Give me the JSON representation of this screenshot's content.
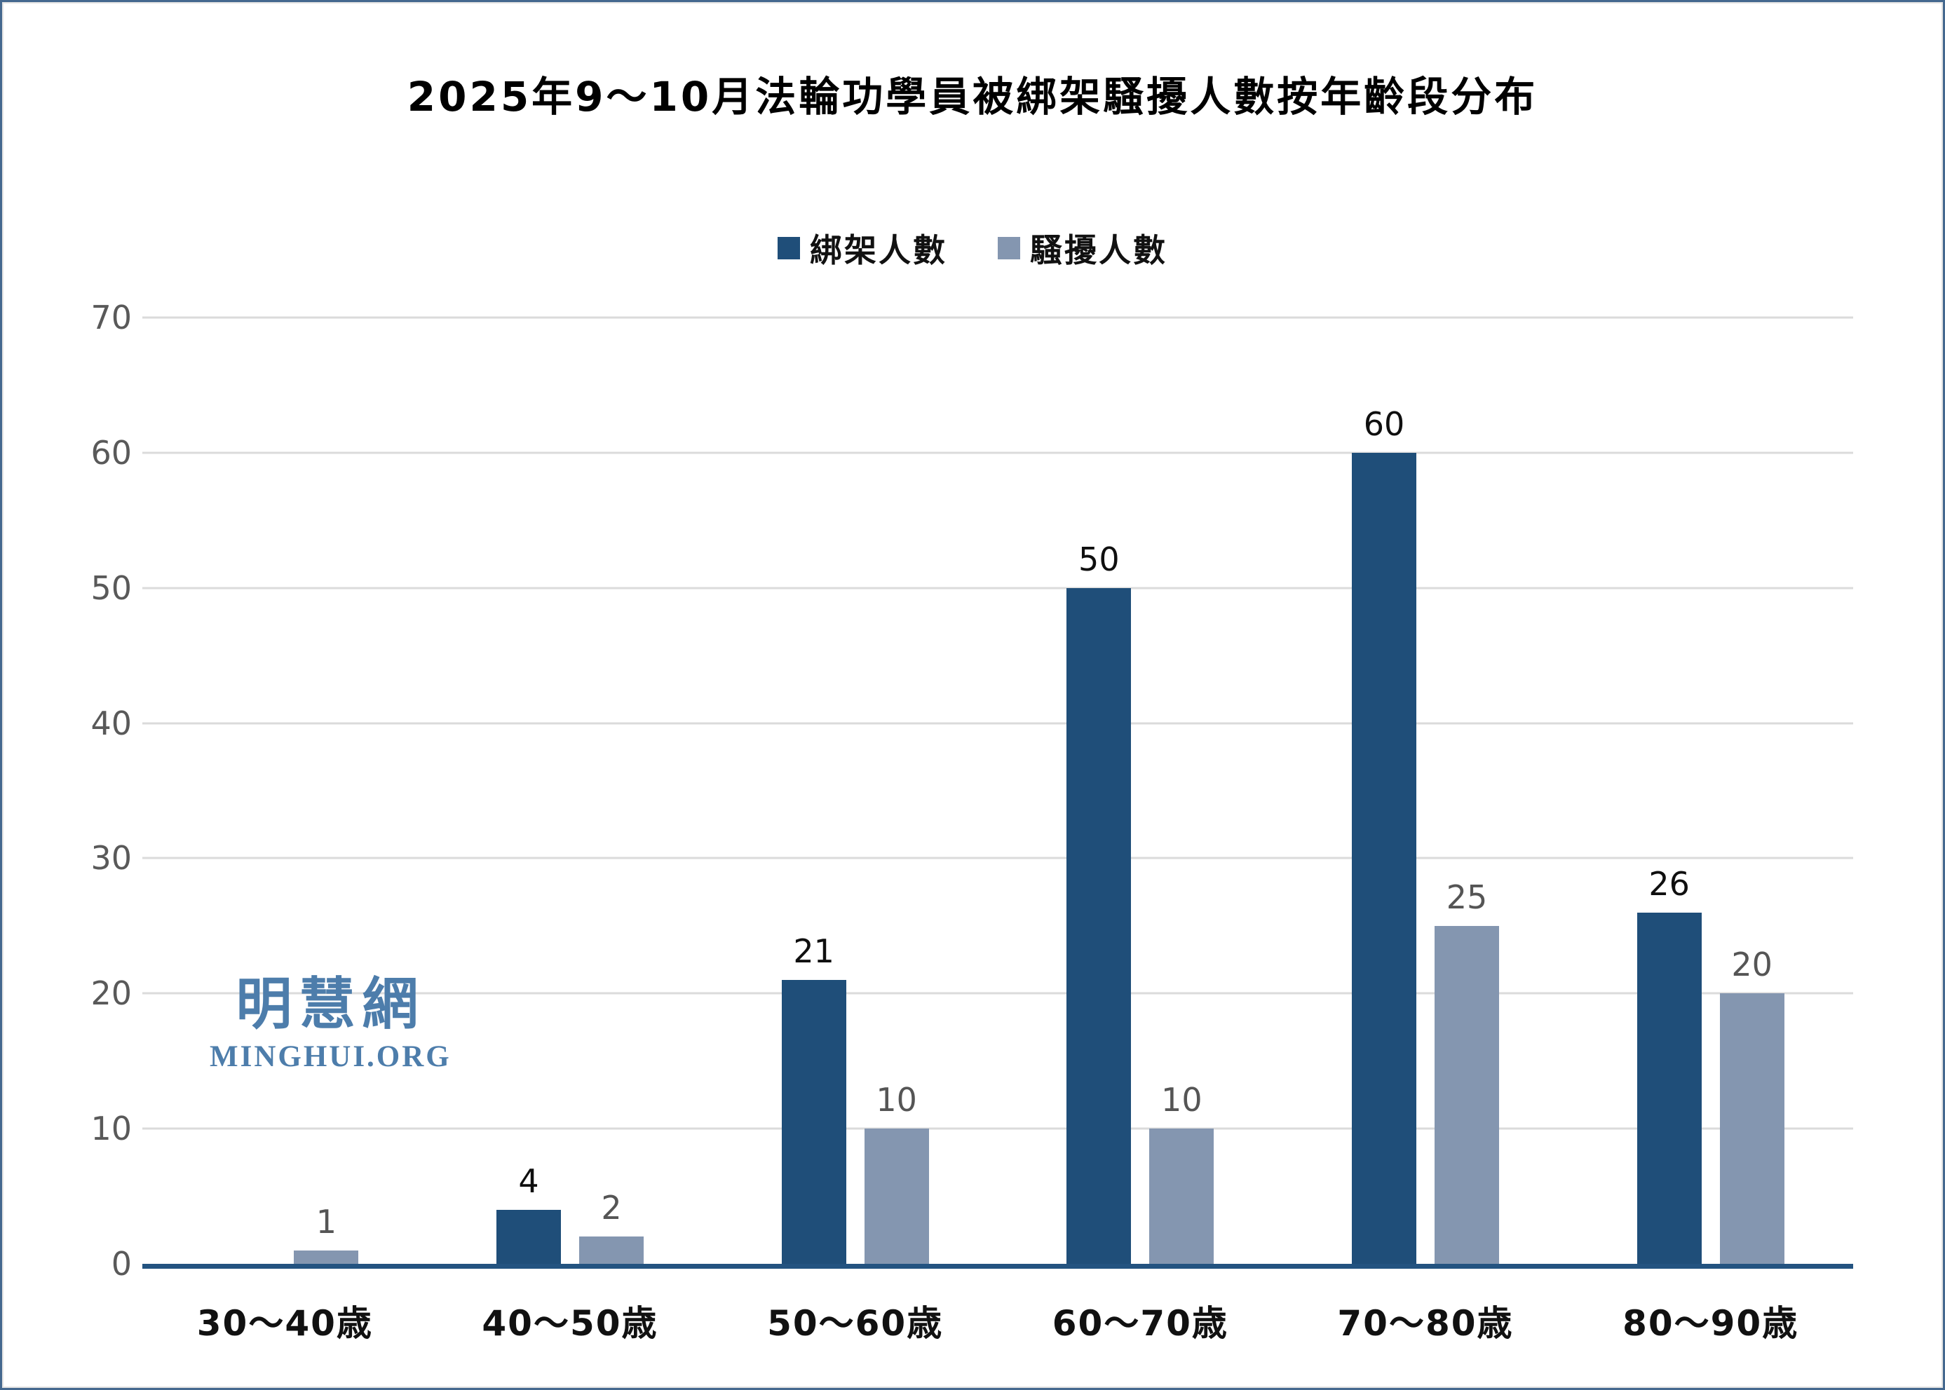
{
  "title": "2025年9～10月法輪功學員被綁架騷擾人數按年齡段分布",
  "watermark": {
    "cjk": "明慧網",
    "latin": "MINGHUI.ORG",
    "color": "#4d7dab"
  },
  "colors": {
    "kidnapped_bar": "#1f4e79",
    "harassed_bar": "#8496b0",
    "axis_line": "#235380",
    "gridline": "#dbdbdb",
    "tick_label": "#595959",
    "dark_value_label": "#0f0f0f",
    "light_value_label": "#555555",
    "frame_border": "#44688f"
  },
  "chart_data": {
    "type": "bar",
    "title": "2025年9～10月法輪功學員被綁架騷擾人數按年齡段分布",
    "categories": [
      "30～40歳",
      "40～50歳",
      "50～60歳",
      "60～70歳",
      "70～80歳",
      "80～90歳"
    ],
    "series": [
      {
        "name": "綁架人數",
        "color": "#1f4e79",
        "label_color": "#0f0f0f",
        "values": [
          0,
          4,
          21,
          50,
          60,
          26
        ]
      },
      {
        "name": "騷擾人數",
        "color": "#8496b0",
        "label_color": "#555555",
        "values": [
          1,
          2,
          10,
          10,
          25,
          20
        ]
      }
    ],
    "ylim": [
      0,
      70
    ],
    "ytick_step": 10,
    "yticks": [
      0,
      10,
      20,
      30,
      40,
      50,
      60,
      70
    ],
    "grid": true,
    "legend_position": "top",
    "value_labels_shown": true,
    "zero_value_labels_hidden": true,
    "xlabel": "",
    "ylabel": ""
  }
}
